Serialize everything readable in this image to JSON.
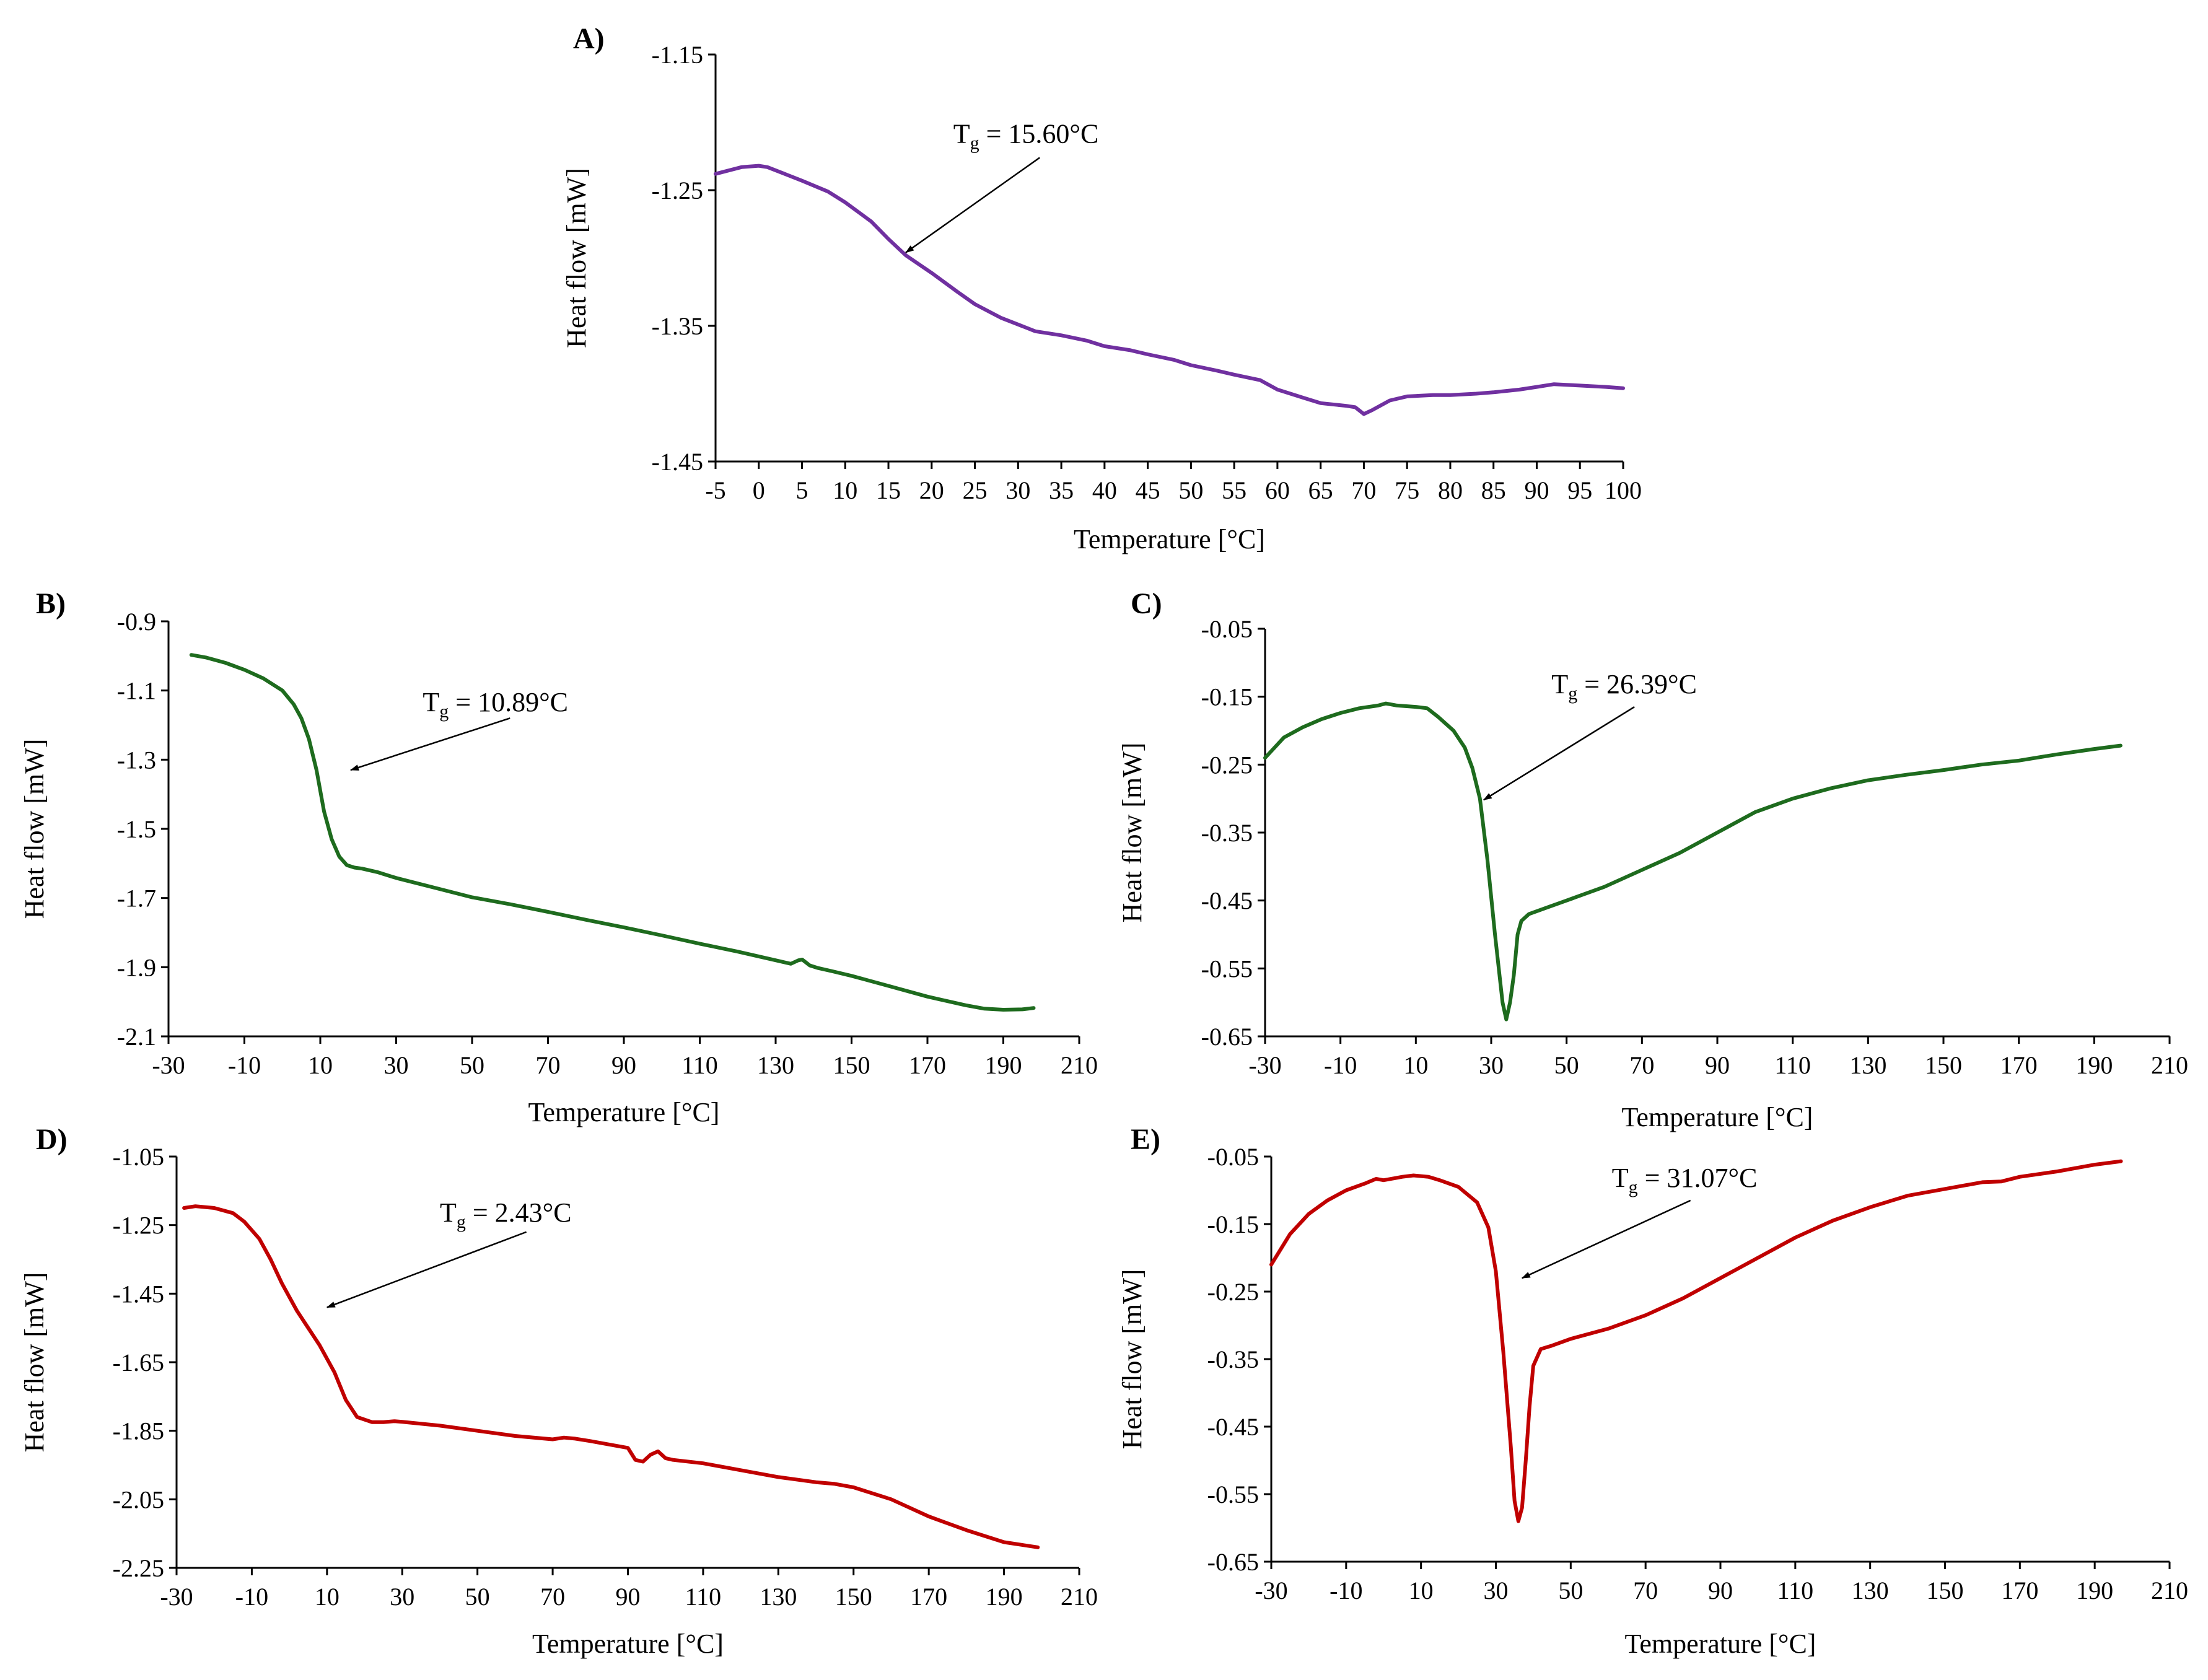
{
  "chart_data": [
    {
      "id": "A",
      "type": "line",
      "panel_label": "A)",
      "xlabel": "Temperature [°C]",
      "ylabel": "Heat flow [mW]",
      "xlim": [
        -5,
        100
      ],
      "ylim": [
        -1.45,
        -1.15
      ],
      "xticks": [
        -5,
        0,
        5,
        10,
        15,
        20,
        25,
        30,
        35,
        40,
        45,
        50,
        55,
        60,
        65,
        70,
        75,
        80,
        85,
        90,
        95,
        100
      ],
      "yticks": [
        -1.15,
        -1.25,
        -1.35,
        -1.45
      ],
      "xtick_labels": [
        "-5",
        "0",
        "5",
        "10",
        "15",
        "20",
        "25",
        "30",
        "35",
        "40",
        "45",
        "50",
        "55",
        "60",
        "65",
        "70",
        "75",
        "80",
        "85",
        "90",
        "95",
        "100"
      ],
      "ytick_labels": [
        "-1.15",
        "-1.25",
        "-1.35",
        "-1.45"
      ],
      "color": "#7030a0",
      "annotation": {
        "prefix": "T",
        "sub": "g",
        "text": " = 15.60°C",
        "label_x": 22.5,
        "label_y": -1.215,
        "tail_x": 32.5,
        "tail_y": -1.226,
        "head_x": 17,
        "head_y": -1.296
      },
      "series": [
        {
          "name": "A",
          "x": [
            -5,
            -2,
            0,
            1,
            3,
            5,
            8,
            10,
            13,
            15,
            17,
            20,
            23,
            25,
            28,
            30,
            32,
            35,
            38,
            40,
            43,
            45,
            48,
            50,
            53,
            55,
            58,
            60,
            63,
            65,
            68,
            69,
            70,
            71,
            73,
            75,
            78,
            80,
            83,
            85,
            88,
            90,
            92,
            95,
            98,
            100
          ],
          "y": [
            -1.238,
            -1.233,
            -1.232,
            -1.233,
            -1.238,
            -1.243,
            -1.251,
            -1.259,
            -1.273,
            -1.286,
            -1.298,
            -1.311,
            -1.325,
            -1.334,
            -1.344,
            -1.349,
            -1.354,
            -1.357,
            -1.361,
            -1.365,
            -1.368,
            -1.371,
            -1.375,
            -1.379,
            -1.383,
            -1.386,
            -1.39,
            -1.397,
            -1.403,
            -1.407,
            -1.409,
            -1.41,
            -1.415,
            -1.412,
            -1.405,
            -1.402,
            -1.401,
            -1.401,
            -1.4,
            -1.399,
            -1.397,
            -1.395,
            -1.393,
            -1.394,
            -1.395,
            -1.396
          ]
        }
      ]
    },
    {
      "id": "B",
      "type": "line",
      "panel_label": "B)",
      "xlabel": "Temperature [°C]",
      "ylabel": "Heat flow [mW]",
      "xlim": [
        -30,
        210
      ],
      "ylim": [
        -2.1,
        -0.9
      ],
      "xticks": [
        -30,
        -10,
        10,
        30,
        50,
        70,
        90,
        110,
        130,
        150,
        170,
        190,
        210
      ],
      "yticks": [
        -0.9,
        -1.1,
        -1.3,
        -1.5,
        -1.7,
        -1.9,
        -2.1
      ],
      "xtick_labels": [
        "-30",
        "-10",
        "10",
        "30",
        "50",
        "70",
        "90",
        "110",
        "130",
        "150",
        "170",
        "190",
        "210"
      ],
      "ytick_labels": [
        "-0.9",
        "-1.1",
        "-1.3",
        "-1.5",
        "-1.7",
        "-1.9",
        "-2.1"
      ],
      "color": "#1e6b1e",
      "annotation": {
        "prefix": "T",
        "sub": "g",
        "text": " = 10.89°C",
        "label_x": 37,
        "label_y": -1.16,
        "tail_x": 60,
        "tail_y": -1.18,
        "head_x": 18,
        "head_y": -1.33
      },
      "series": [
        {
          "name": "B",
          "x": [
            -24,
            -20,
            -15,
            -10,
            -5,
            0,
            3,
            5,
            7,
            9,
            11,
            13,
            15,
            17,
            19,
            21,
            25,
            30,
            40,
            50,
            60,
            70,
            80,
            90,
            100,
            110,
            120,
            130,
            134,
            136,
            137,
            139,
            141,
            145,
            150,
            160,
            170,
            180,
            185,
            190,
            195,
            198
          ],
          "y": [
            -0.997,
            -1.005,
            -1.02,
            -1.04,
            -1.065,
            -1.1,
            -1.14,
            -1.18,
            -1.24,
            -1.33,
            -1.45,
            -1.53,
            -1.58,
            -1.605,
            -1.612,
            -1.615,
            -1.625,
            -1.642,
            -1.67,
            -1.698,
            -1.718,
            -1.74,
            -1.763,
            -1.785,
            -1.808,
            -1.832,
            -1.855,
            -1.88,
            -1.89,
            -1.88,
            -1.878,
            -1.895,
            -1.902,
            -1.912,
            -1.925,
            -1.955,
            -1.985,
            -2.01,
            -2.02,
            -2.023,
            -2.022,
            -2.018
          ]
        }
      ]
    },
    {
      "id": "C",
      "type": "line",
      "panel_label": "C)",
      "xlabel": "Temperature [°C]",
      "ylabel": "Heat flow [mW]",
      "xlim": [
        -30,
        210
      ],
      "ylim": [
        -0.65,
        -0.05
      ],
      "xticks": [
        -30,
        -10,
        10,
        30,
        50,
        70,
        90,
        110,
        130,
        150,
        170,
        190,
        210
      ],
      "yticks": [
        -0.05,
        -0.15,
        -0.25,
        -0.35,
        -0.45,
        -0.55,
        -0.65
      ],
      "xtick_labels": [
        "-30",
        "-10",
        "10",
        "30",
        "50",
        "70",
        "90",
        "110",
        "130",
        "150",
        "170",
        "190",
        "210"
      ],
      "ytick_labels": [
        "-0.05",
        "-0.15",
        "-0.25",
        "-0.35",
        "-0.45",
        "-0.55",
        "-0.65"
      ],
      "color": "#1e6b1e",
      "annotation": {
        "prefix": "T",
        "sub": "g",
        "text": " = 26.39°C",
        "label_x": 46,
        "label_y": -0.145,
        "tail_x": 68,
        "tail_y": -0.165,
        "head_x": 28,
        "head_y": -0.302
      },
      "series": [
        {
          "name": "C",
          "x": [
            -30,
            -25,
            -20,
            -15,
            -10,
            -5,
            0,
            2,
            5,
            10,
            13,
            16,
            20,
            23,
            25,
            27,
            29,
            31,
            33,
            34,
            35,
            36,
            37,
            38,
            40,
            45,
            50,
            60,
            70,
            80,
            90,
            100,
            110,
            120,
            130,
            140,
            150,
            160,
            170,
            180,
            190,
            197
          ],
          "y": [
            -0.24,
            -0.21,
            -0.195,
            -0.183,
            -0.174,
            -0.167,
            -0.163,
            -0.16,
            -0.163,
            -0.165,
            -0.167,
            -0.18,
            -0.2,
            -0.225,
            -0.255,
            -0.3,
            -0.39,
            -0.5,
            -0.6,
            -0.625,
            -0.6,
            -0.56,
            -0.5,
            -0.48,
            -0.47,
            -0.46,
            -0.45,
            -0.43,
            -0.405,
            -0.38,
            -0.35,
            -0.32,
            -0.3,
            -0.285,
            -0.273,
            -0.265,
            -0.258,
            -0.25,
            -0.244,
            -0.235,
            -0.227,
            -0.222
          ]
        }
      ]
    },
    {
      "id": "D",
      "type": "line",
      "panel_label": "D)",
      "xlabel": "Temperature [°C]",
      "ylabel": "Heat flow [mW]",
      "xlim": [
        -30,
        210
      ],
      "ylim": [
        -2.25,
        -1.05
      ],
      "xticks": [
        -30,
        -10,
        10,
        30,
        50,
        70,
        90,
        110,
        130,
        150,
        170,
        190,
        210
      ],
      "yticks": [
        -1.05,
        -1.25,
        -1.45,
        -1.65,
        -1.85,
        -2.05,
        -2.25
      ],
      "xtick_labels": [
        "-30",
        "-10",
        "10",
        "30",
        "50",
        "70",
        "90",
        "110",
        "130",
        "150",
        "170",
        "190",
        "210"
      ],
      "ytick_labels": [
        "-1.05",
        "-1.25",
        "-1.45",
        "-1.65",
        "-1.85",
        "-2.05",
        "-2.25"
      ],
      "color": "#c00000",
      "annotation": {
        "prefix": "T",
        "sub": "g",
        "text": " = 2.43°C",
        "label_x": 40,
        "label_y": -1.24,
        "tail_x": 63,
        "tail_y": -1.27,
        "head_x": 10,
        "head_y": -1.49
      },
      "series": [
        {
          "name": "D",
          "x": [
            -28,
            -25,
            -20,
            -15,
            -12,
            -8,
            -5,
            -2,
            2,
            5,
            8,
            12,
            15,
            18,
            22,
            25,
            28,
            30,
            40,
            50,
            60,
            70,
            73,
            76,
            80,
            90,
            92,
            94,
            96,
            98,
            100,
            102,
            110,
            120,
            130,
            140,
            145,
            150,
            160,
            170,
            180,
            190,
            199
          ],
          "y": [
            -1.2,
            -1.195,
            -1.2,
            -1.215,
            -1.24,
            -1.29,
            -1.35,
            -1.42,
            -1.5,
            -1.55,
            -1.6,
            -1.68,
            -1.76,
            -1.81,
            -1.825,
            -1.825,
            -1.822,
            -1.824,
            -1.835,
            -1.85,
            -1.865,
            -1.875,
            -1.87,
            -1.873,
            -1.88,
            -1.9,
            -1.935,
            -1.94,
            -1.92,
            -1.91,
            -1.93,
            -1.935,
            -1.945,
            -1.965,
            -1.985,
            -2.0,
            -2.005,
            -2.015,
            -2.05,
            -2.1,
            -2.14,
            -2.175,
            -2.19
          ]
        }
      ]
    },
    {
      "id": "E",
      "type": "line",
      "panel_label": "E)",
      "xlabel": "Temperature [°C]",
      "ylabel": "Heat flow [mW]",
      "xlim": [
        -30,
        210
      ],
      "ylim": [
        -0.65,
        -0.05
      ],
      "xticks": [
        -30,
        -10,
        10,
        30,
        50,
        70,
        90,
        110,
        130,
        150,
        170,
        190,
        210
      ],
      "yticks": [
        -0.05,
        -0.15,
        -0.25,
        -0.35,
        -0.45,
        -0.55,
        -0.65
      ],
      "xtick_labels": [
        "-30",
        "-10",
        "10",
        "30",
        "50",
        "70",
        "90",
        "110",
        "130",
        "150",
        "170",
        "190",
        "210"
      ],
      "ytick_labels": [
        "-0.05",
        "-0.15",
        "-0.25",
        "-0.35",
        "-0.45",
        "-0.55",
        "-0.65"
      ],
      "color": "#c00000",
      "annotation": {
        "prefix": "T",
        "sub": "g",
        "text": " = 31.07°C",
        "label_x": 61,
        "label_y": -0.095,
        "tail_x": 82,
        "tail_y": -0.115,
        "head_x": 37,
        "head_y": -0.23
      },
      "series": [
        {
          "name": "E",
          "x": [
            -30,
            -25,
            -20,
            -15,
            -10,
            -5,
            -2,
            0,
            3,
            5,
            8,
            12,
            15,
            20,
            25,
            28,
            30,
            32,
            34,
            35,
            36,
            37,
            38,
            39,
            40,
            42,
            45,
            50,
            60,
            70,
            80,
            90,
            100,
            110,
            120,
            130,
            140,
            150,
            160,
            165,
            170,
            180,
            190,
            197
          ],
          "y": [
            -0.21,
            -0.165,
            -0.135,
            -0.115,
            -0.1,
            -0.09,
            -0.083,
            -0.085,
            -0.082,
            -0.08,
            -0.078,
            -0.08,
            -0.085,
            -0.095,
            -0.118,
            -0.155,
            -0.22,
            -0.34,
            -0.48,
            -0.56,
            -0.59,
            -0.57,
            -0.5,
            -0.42,
            -0.36,
            -0.335,
            -0.33,
            -0.32,
            -0.305,
            -0.285,
            -0.26,
            -0.23,
            -0.2,
            -0.17,
            -0.145,
            -0.125,
            -0.108,
            -0.098,
            -0.088,
            -0.087,
            -0.08,
            -0.072,
            -0.062,
            -0.057
          ]
        }
      ]
    }
  ]
}
